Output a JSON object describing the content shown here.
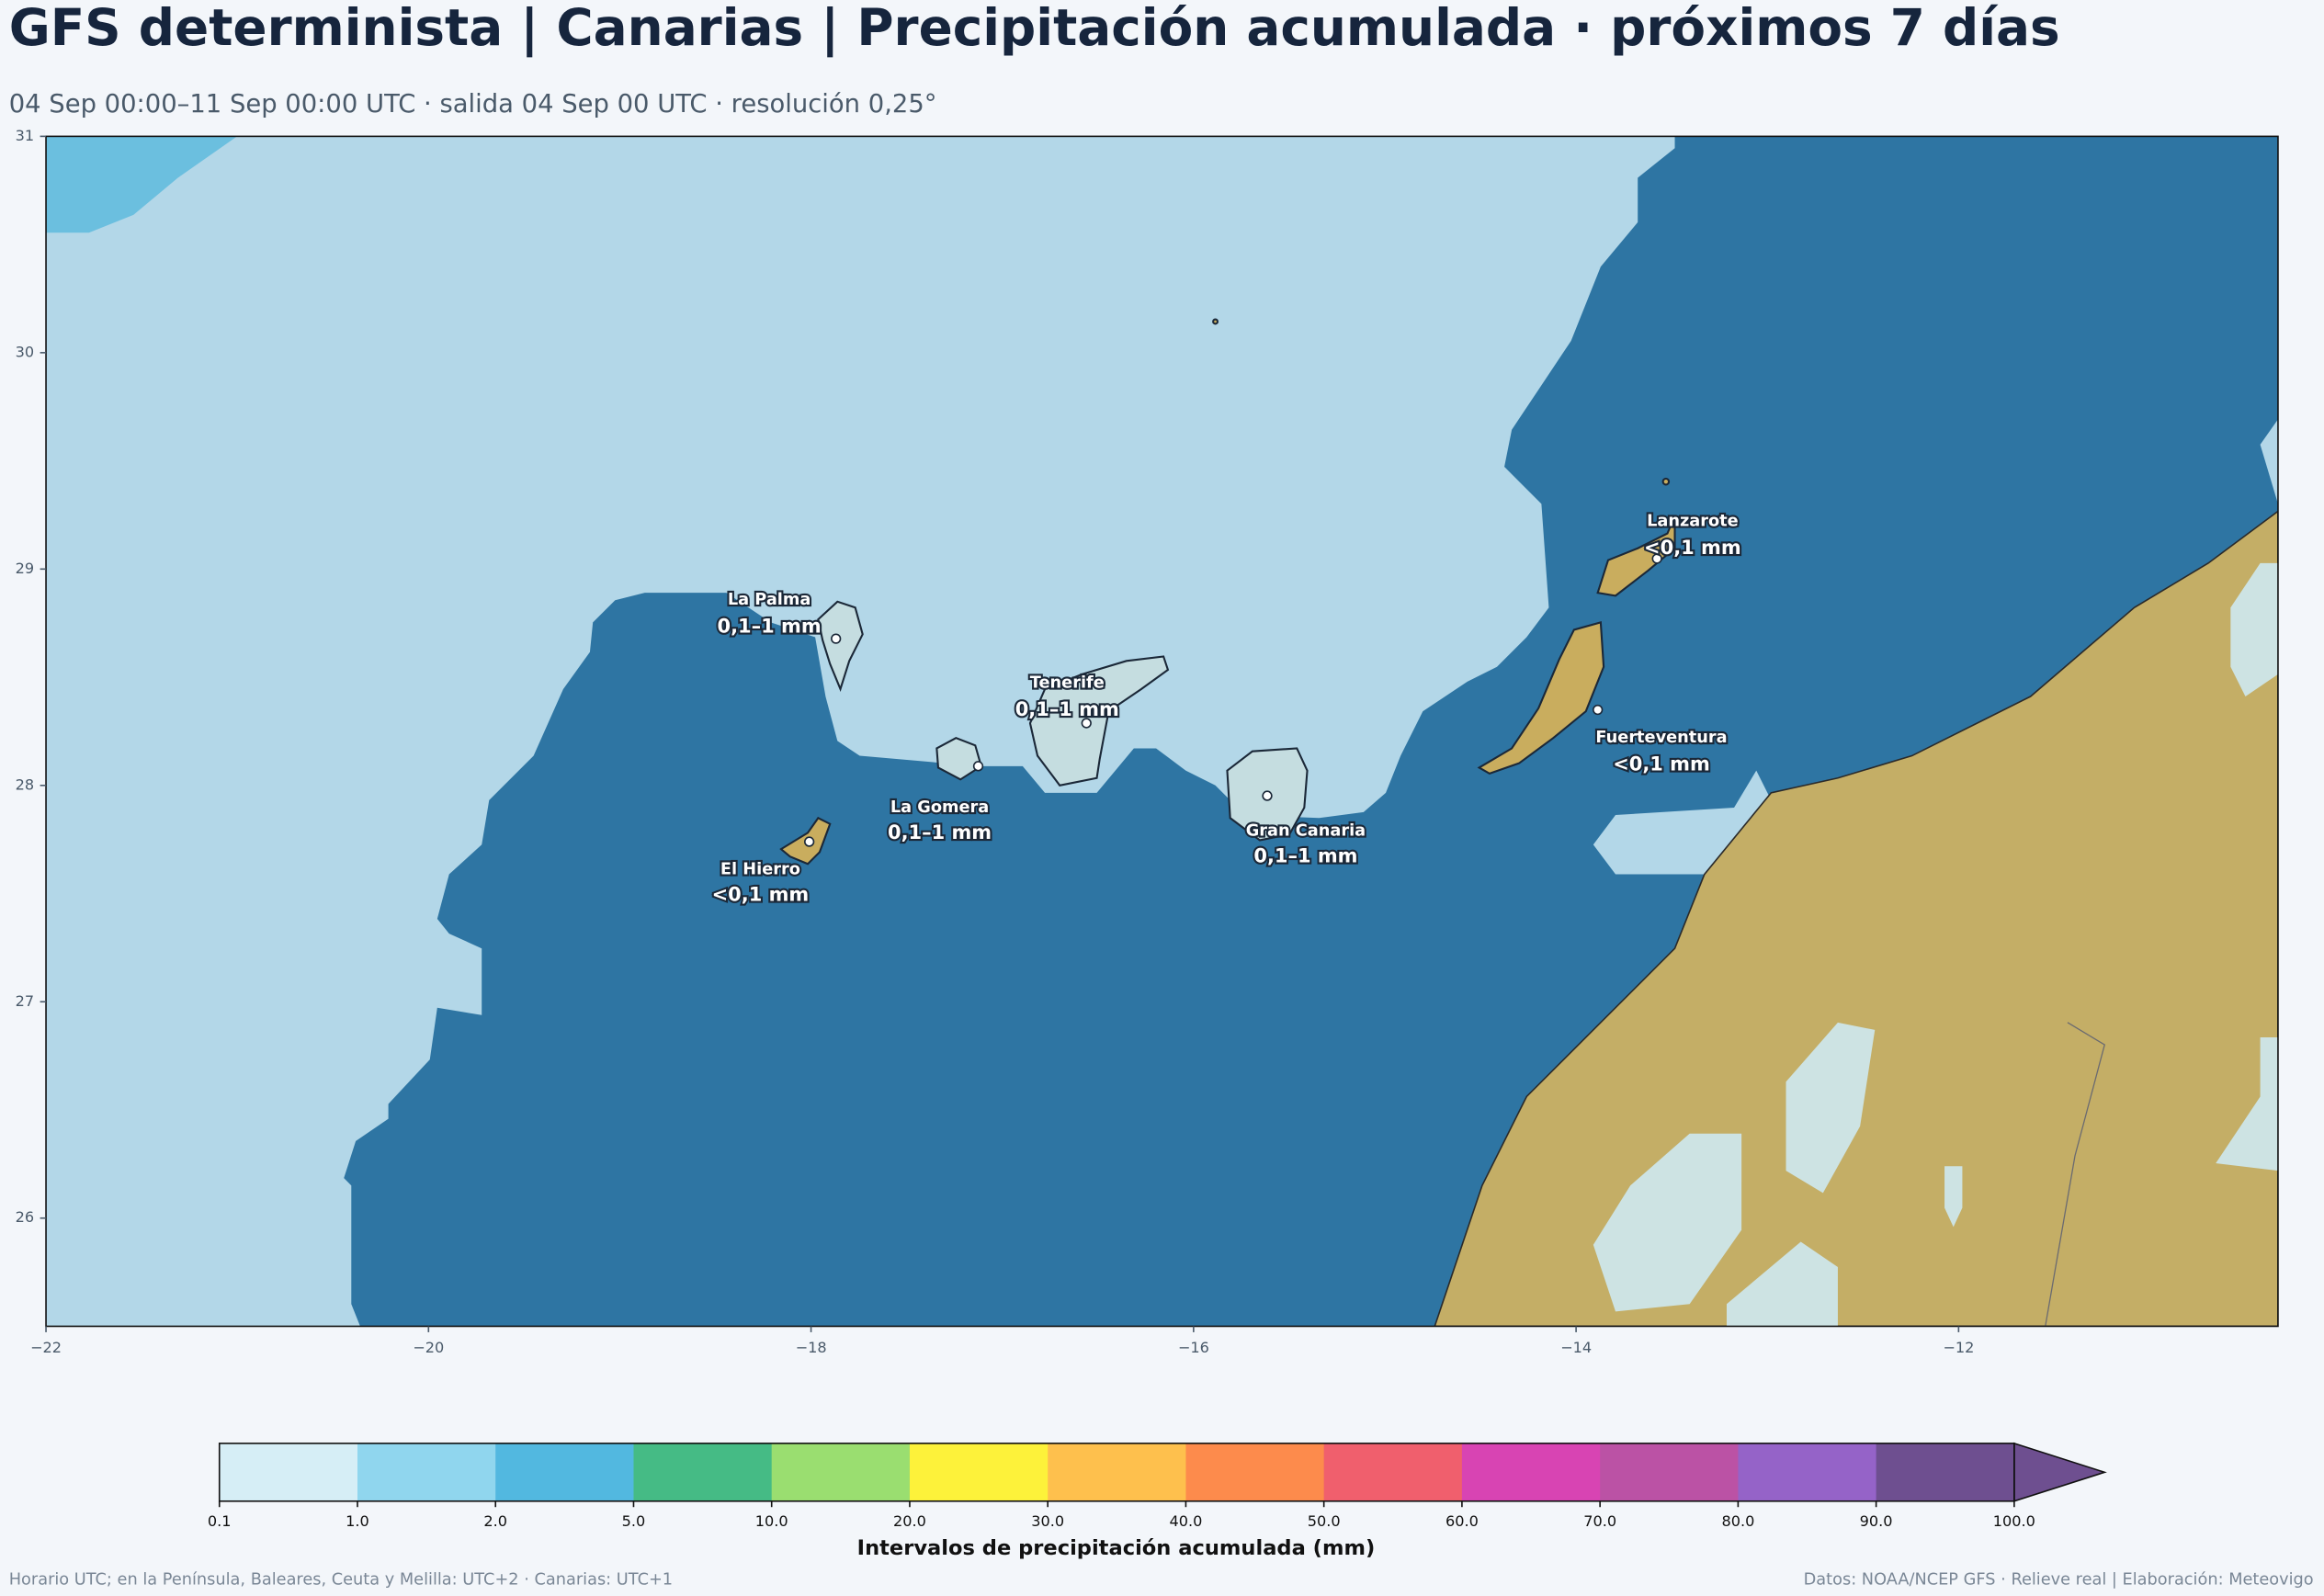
{
  "header": {
    "title": "GFS determinista | Canarias | Precipitación acumulada · próximos 7 días",
    "subtitle": "04 Sep 00:00–11 Sep 00:00 UTC · salida 04 Sep 00 UTC · resolución 0,25°"
  },
  "map": {
    "xlim": [
      -22,
      -10.33
    ],
    "ylim": [
      25.5,
      31
    ],
    "xticks": [
      {
        "value": -22,
        "label": "−22"
      },
      {
        "value": -20,
        "label": "−20"
      },
      {
        "value": -18,
        "label": "−18"
      },
      {
        "value": -16,
        "label": "−16"
      },
      {
        "value": -14,
        "label": "−14"
      },
      {
        "value": -12,
        "label": "−12"
      }
    ],
    "yticks": [
      26,
      27,
      28,
      29,
      30,
      31
    ],
    "labels": [
      {
        "name": "La Palma",
        "value": "0,1–1 mm"
      },
      {
        "name": "Tenerife",
        "value": "0,1–1 mm"
      },
      {
        "name": "La Gomera",
        "value": "0,1–1 mm"
      },
      {
        "name": "Gran Canaria",
        "value": "0,1–1 mm"
      },
      {
        "name": "El Hierro",
        "value": "<0,1 mm"
      },
      {
        "name": "Lanzarote",
        "value": "<0,1 mm"
      },
      {
        "name": "Fuerteventura",
        "value": "<0,1 mm"
      }
    ]
  },
  "colorbar": {
    "label": "Intervalos de precipitación acumulada (mm)",
    "bounds": [
      0.1,
      {
        "value": 1,
        "label": "1.0"
      },
      {
        "value": 2,
        "label": "2.0"
      },
      {
        "value": 5,
        "label": "5.0"
      },
      {
        "value": 10,
        "label": "10.0"
      },
      {
        "value": 20,
        "label": "20.0"
      },
      {
        "value": 30,
        "label": "30.0"
      },
      {
        "value": 40,
        "label": "40.0"
      },
      {
        "value": 50,
        "label": "50.0"
      },
      {
        "value": 60,
        "label": "60.0"
      },
      {
        "value": 70,
        "label": "70.0"
      },
      {
        "value": 80,
        "label": "80.0"
      },
      {
        "value": 90,
        "label": "90.0"
      },
      {
        "value": 100,
        "label": "100.0"
      }
    ],
    "colors": [
      "#d6eef6",
      "#90d6ee",
      "#52b8e0",
      "#45bb85",
      "#9ade70",
      "#fdf23a",
      "#fec04d",
      "#fd8b4c",
      "#f05f6d",
      "#d844b3",
      "#bb52a5",
      "#9563c8",
      "#6e4f90"
    ],
    "extend_color": "#6e4f90"
  },
  "footer": {
    "left": "Horario UTC; en la Península, Baleares, Ceuta y Melilla: UTC+2 · Canarias: UTC+1",
    "right": "Datos: NOAA/NCEP GFS · Relieve real | Elaboración: Meteovigo"
  }
}
